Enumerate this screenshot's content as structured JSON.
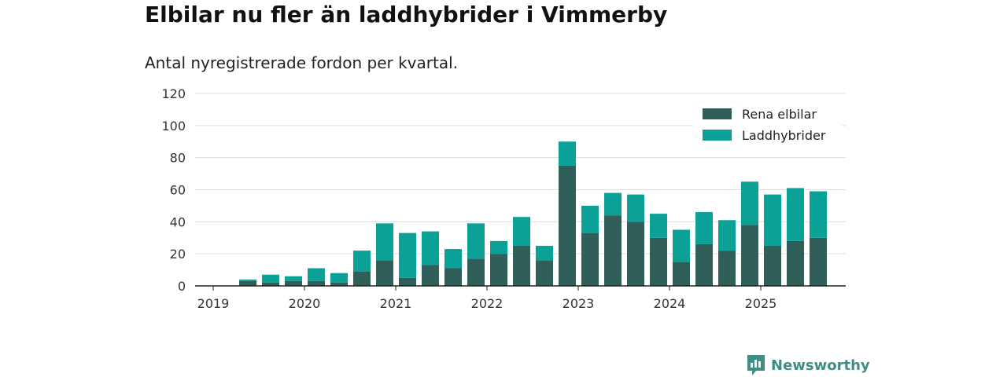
{
  "chart_data": {
    "type": "bar",
    "stacked": true,
    "title": "Elbilar nu fler än laddhybrider i Vimmerby",
    "subtitle": "Antal nyregistrerade fordon per kvartal.",
    "xlabel": "",
    "ylabel": "",
    "ylim": [
      0,
      120
    ],
    "yticks": [
      0,
      20,
      40,
      60,
      80,
      100,
      120
    ],
    "xticks": [
      "2019",
      "2020",
      "2021",
      "2022",
      "2023",
      "2024",
      "2025"
    ],
    "categories": [
      "2019 Q2",
      "2019 Q3",
      "2019 Q4",
      "2020 Q1",
      "2020 Q2",
      "2020 Q3",
      "2020 Q4",
      "2021 Q1",
      "2021 Q2",
      "2021 Q3",
      "2021 Q4",
      "2022 Q1",
      "2022 Q2",
      "2022 Q3",
      "2022 Q4",
      "2023 Q1",
      "2023 Q2",
      "2023 Q3",
      "2023 Q4",
      "2024 Q1",
      "2024 Q2",
      "2024 Q3",
      "2024 Q4",
      "2025 Q1",
      "2025 Q2",
      "2025 Q3"
    ],
    "series": [
      {
        "name": "Rena elbilar",
        "color": "#2f5f58",
        "values": [
          3,
          2,
          3,
          3,
          2,
          9,
          16,
          5,
          13,
          11,
          17,
          20,
          25,
          16,
          75,
          33,
          44,
          40,
          30,
          15,
          26,
          22,
          38,
          25,
          28,
          30
        ]
      },
      {
        "name": "Laddhybrider",
        "color": "#0ba196",
        "values": [
          1,
          5,
          3,
          8,
          6,
          13,
          23,
          28,
          21,
          12,
          22,
          8,
          18,
          9,
          15,
          17,
          14,
          17,
          15,
          20,
          20,
          19,
          27,
          32,
          33,
          29
        ]
      }
    ],
    "legend_position": "top-right",
    "grid": true
  },
  "brand": {
    "name": "Newsworthy"
  }
}
